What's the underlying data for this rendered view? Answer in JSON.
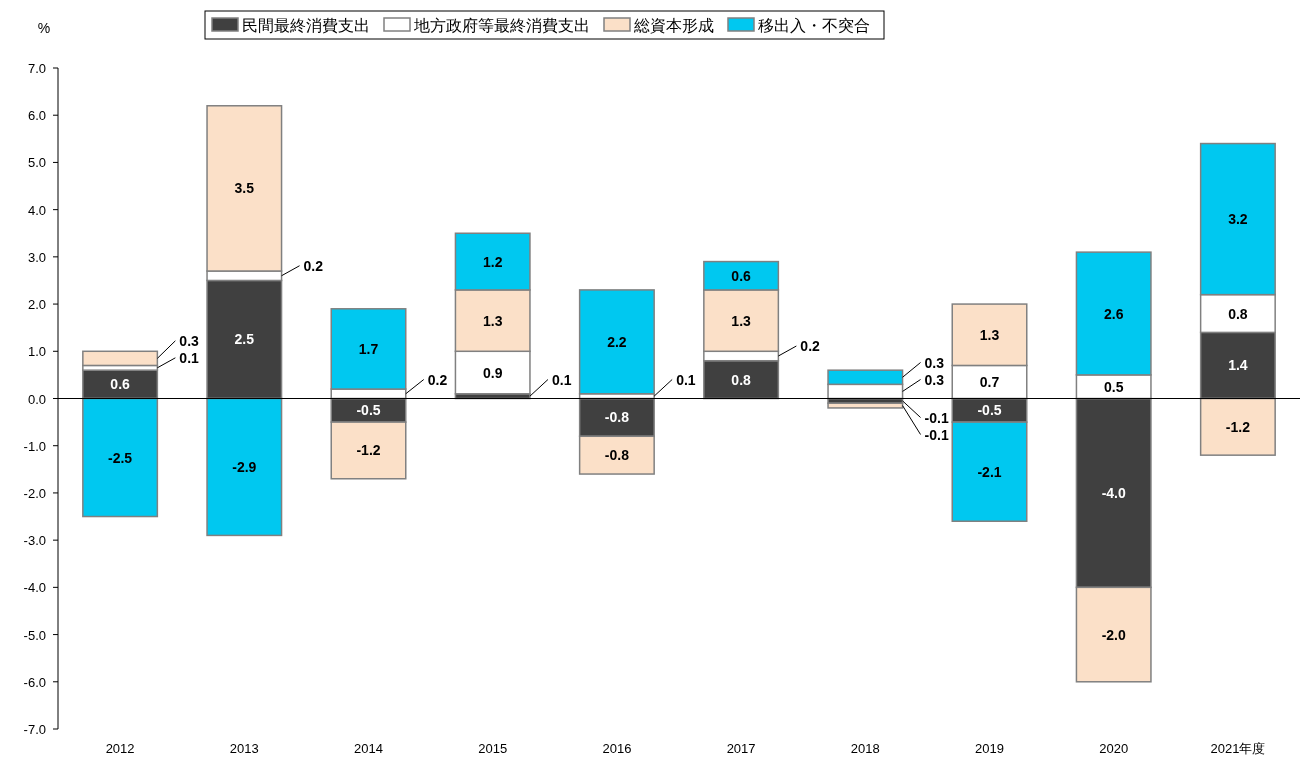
{
  "chart_data": {
    "type": "bar",
    "stacked": true,
    "ylabel": "%",
    "categories": [
      "2012",
      "2013",
      "2014",
      "2015",
      "2016",
      "2017",
      "2018",
      "2019",
      "2020",
      "2021年度"
    ],
    "series": [
      {
        "name": "民間最終消費支出",
        "color": "#404040",
        "values": [
          0.6,
          2.5,
          -0.5,
          0.1,
          -0.8,
          0.8,
          -0.1,
          -0.5,
          -4.0,
          1.4
        ],
        "value_labels": [
          "0.6",
          "2.5",
          "-0.5",
          "0.1",
          "-0.8",
          "0.8",
          "-0.1",
          "-0.5",
          "-4.0",
          "1.4"
        ]
      },
      {
        "name": "地方政府等最終消費支出",
        "color": "#ffffff",
        "values": [
          0.1,
          0.2,
          0.2,
          0.9,
          0.1,
          0.2,
          0.3,
          0.7,
          0.5,
          0.8
        ],
        "value_labels": [
          "0.1",
          "0.2",
          "0.2",
          "0.9",
          "0.1",
          "0.2",
          "0.3",
          "0.7",
          "0.5",
          "0.8"
        ]
      },
      {
        "name": "総資本形成",
        "color": "#fbe0c8",
        "values": [
          0.3,
          3.5,
          -1.2,
          1.3,
          -0.8,
          1.3,
          -0.1,
          1.3,
          -2.0,
          -1.2
        ],
        "value_labels": [
          "0.3",
          "3.5",
          "-1.2",
          "1.3",
          "-0.8",
          "1.3",
          "-0.1",
          "1.3",
          "-2.0",
          "-1.2"
        ]
      },
      {
        "name": "移出入・不突合",
        "color": "#00c8f0",
        "values": [
          -2.5,
          -2.9,
          1.7,
          1.2,
          2.2,
          0.6,
          0.3,
          -2.1,
          2.6,
          3.2
        ],
        "value_labels": [
          "-2.5",
          "-2.9",
          "1.7",
          "1.2",
          "2.2",
          "0.6",
          "0.3",
          "-2.1",
          "2.6",
          "3.2"
        ]
      }
    ],
    "ref_lines": [
      {
        "axis": "y",
        "value": 0,
        "color": "#000000"
      }
    ],
    "ylim": [
      -7,
      7
    ],
    "yticks": [
      {
        "value": -7,
        "label": "-7.0"
      },
      {
        "value": -6,
        "label": "-6.0"
      },
      {
        "value": -5,
        "label": "-5.0"
      },
      {
        "value": -4,
        "label": "-4.0"
      },
      {
        "value": -3,
        "label": "-3.0"
      },
      {
        "value": -2,
        "label": "-2.0"
      },
      {
        "value": -1,
        "label": "-1.0"
      },
      {
        "value": 0,
        "label": "0.0"
      },
      {
        "value": 1,
        "label": "1.0"
      },
      {
        "value": 2,
        "label": "2.0"
      },
      {
        "value": 3,
        "label": "3.0"
      },
      {
        "value": 4,
        "label": "4.0"
      },
      {
        "value": 5,
        "label": "5.0"
      },
      {
        "value": 6,
        "label": "6.0"
      },
      {
        "value": 7,
        "label": "7.0"
      }
    ],
    "legend": "top"
  }
}
